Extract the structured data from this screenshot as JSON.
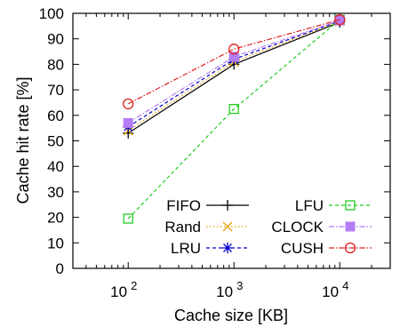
{
  "chart_data": {
    "type": "line",
    "xscale": "log",
    "xlabel": "Cache size [KB]",
    "ylabel": "Cache hit rate [%]",
    "xlim": [
      30,
      30000
    ],
    "ylim": [
      0,
      100
    ],
    "yticks": [
      0,
      10,
      20,
      30,
      40,
      50,
      60,
      70,
      80,
      90,
      100
    ],
    "xticks": [
      {
        "value": 100,
        "base": "10",
        "exp": "2"
      },
      {
        "value": 1000,
        "base": "10",
        "exp": "3"
      },
      {
        "value": 10000,
        "base": "10",
        "exp": "4"
      }
    ],
    "x": [
      100,
      1000,
      10000
    ],
    "grid": false,
    "legend_position": "bottom-right",
    "series": [
      {
        "name": "FIFO",
        "values": [
          53,
          80,
          96.5
        ],
        "color": "#000000",
        "marker": "plus",
        "dash": "solid"
      },
      {
        "name": "Rand",
        "values": [
          54,
          81,
          96.8
        ],
        "color": "#e69f00",
        "marker": "cross",
        "dash": "dotted"
      },
      {
        "name": "LRU",
        "values": [
          55.5,
          82,
          97
        ],
        "color": "#0000cc",
        "marker": "star",
        "dash": "dashed"
      },
      {
        "name": "LFU",
        "values": [
          19.5,
          62.5,
          97.5
        ],
        "color": "#22cc22",
        "marker": "square-open",
        "dash": "dashed"
      },
      {
        "name": "CLOCK",
        "values": [
          57,
          83,
          97.2
        ],
        "color": "#b47cf5",
        "marker": "square-filled",
        "dash": "dashdot"
      },
      {
        "name": "CUSH",
        "values": [
          64.5,
          86,
          97.5
        ],
        "color": "#e0201f",
        "marker": "circle-open",
        "dash": "dashdot"
      }
    ]
  }
}
